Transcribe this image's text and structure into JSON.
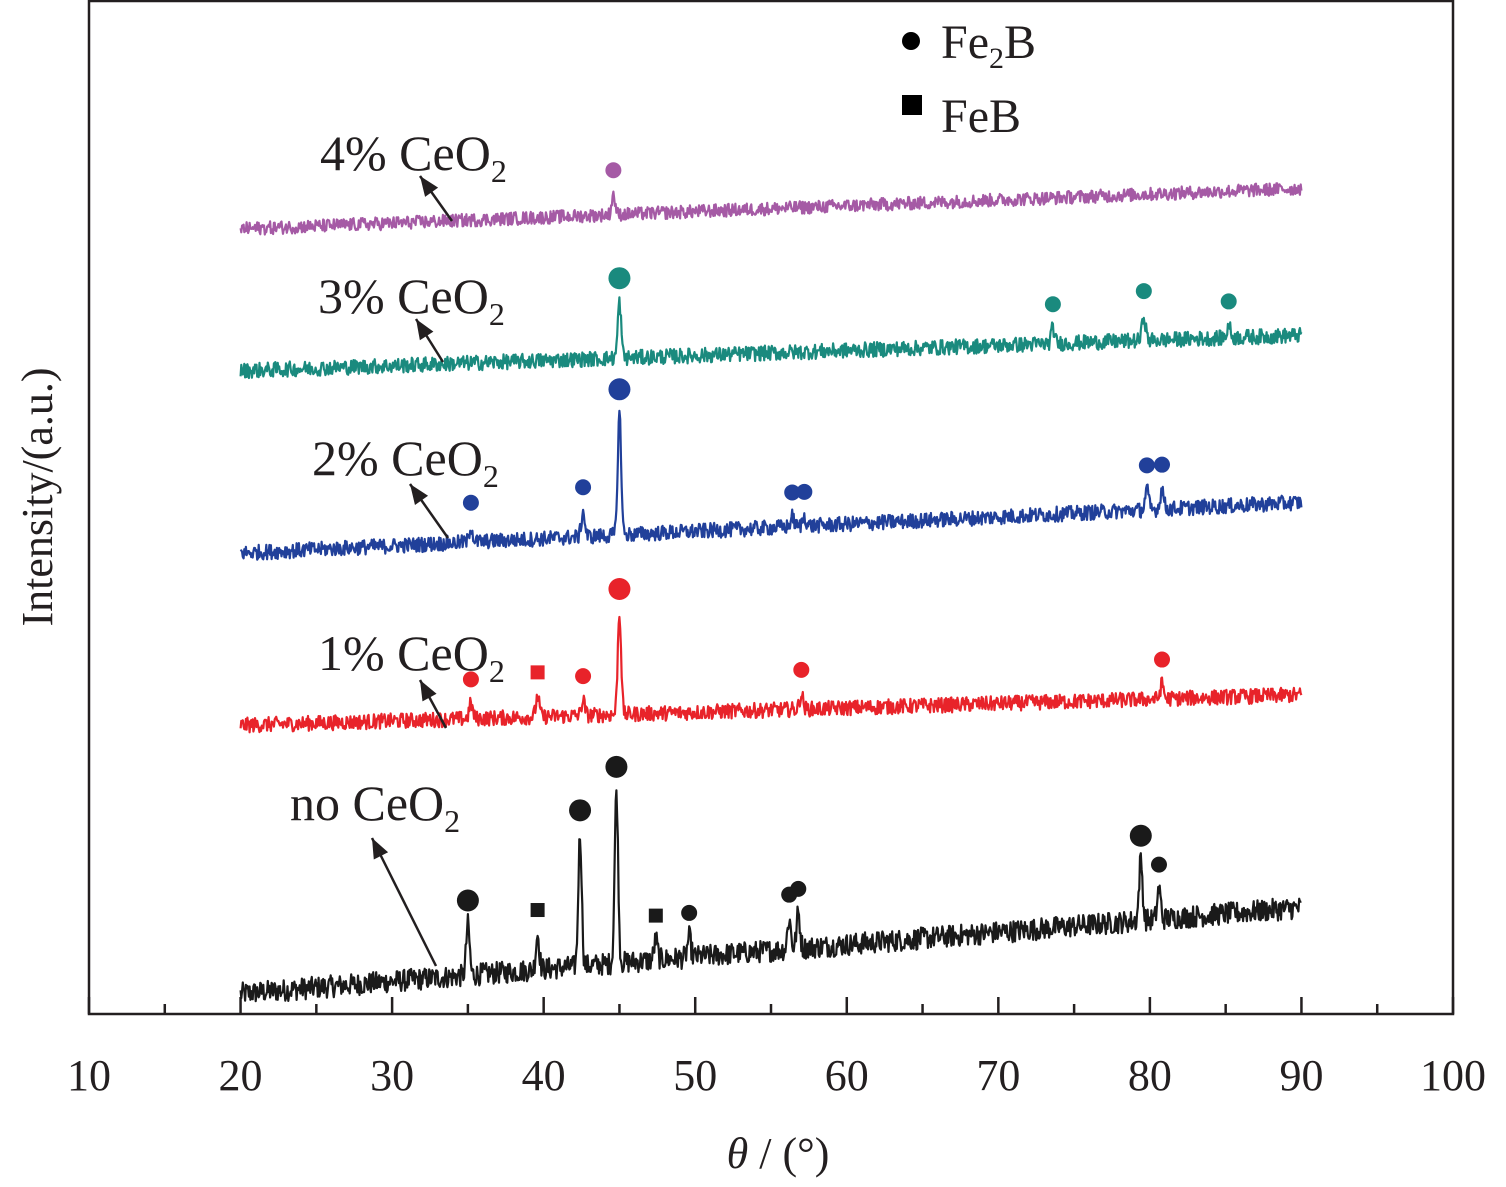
{
  "chart_data": {
    "type": "line",
    "title": "",
    "xlabel_symbol": "θ",
    "xlabel_unit": " / (°)",
    "ylabel": "Intensity/(a.u.)",
    "xlim": [
      10,
      100
    ],
    "xticks": [
      10,
      20,
      30,
      40,
      50,
      60,
      70,
      80,
      90,
      100
    ],
    "x_range": [
      20,
      90
    ],
    "legend_position": "top-center",
    "legend": [
      {
        "marker": "circle",
        "label_base": "Fe",
        "label_sub": "2",
        "label_tail": "B"
      },
      {
        "marker": "square",
        "label_base": "FeB",
        "label_sub": "",
        "label_tail": ""
      }
    ],
    "series": [
      {
        "name_base": "no CeO",
        "name_sub": "2",
        "color": "#1a1a1a",
        "baseline": [
          0.02,
          0.105
        ],
        "noise": 0.022,
        "peaks": [
          {
            "x": 35.0,
            "h": 0.05,
            "phase": "Fe2B"
          },
          {
            "x": 39.6,
            "h": 0.035,
            "phase": "FeB"
          },
          {
            "x": 42.4,
            "h": 0.13,
            "phase": "Fe2B"
          },
          {
            "x": 44.8,
            "h": 0.17,
            "phase": "Fe2B"
          },
          {
            "x": 47.4,
            "h": 0.02,
            "phase": "FeB"
          },
          {
            "x": 49.6,
            "h": 0.02,
            "phase": "Fe2B"
          },
          {
            "x": 56.2,
            "h": 0.03,
            "phase": "Fe2B"
          },
          {
            "x": 56.8,
            "h": 0.035,
            "phase": "Fe2B"
          },
          {
            "x": 79.4,
            "h": 0.06,
            "phase": "Fe2B"
          },
          {
            "x": 80.6,
            "h": 0.03,
            "phase": "Fe2B"
          }
        ]
      },
      {
        "name_base": "1% CeO",
        "name_sub": "2",
        "color": "#e8232a",
        "baseline": [
          0.285,
          0.315
        ],
        "noise": 0.015,
        "peaks": [
          {
            "x": 35.2,
            "h": 0.015,
            "phase": "Fe2B"
          },
          {
            "x": 39.6,
            "h": 0.02,
            "phase": "FeB"
          },
          {
            "x": 42.6,
            "h": 0.015,
            "phase": "Fe2B"
          },
          {
            "x": 45.0,
            "h": 0.1,
            "phase": "Fe2B"
          },
          {
            "x": 57.0,
            "h": 0.015,
            "phase": "Fe2B"
          },
          {
            "x": 80.8,
            "h": 0.015,
            "phase": "Fe2B"
          }
        ]
      },
      {
        "name_base": "2% CeO",
        "name_sub": "2",
        "color": "#21409a",
        "baseline": [
          0.455,
          0.505
        ],
        "noise": 0.015,
        "peaks": [
          {
            "x": 35.2,
            "h": 0.015,
            "phase": "Fe2B"
          },
          {
            "x": 42.6,
            "h": 0.025,
            "phase": "Fe2B"
          },
          {
            "x": 45.0,
            "h": 0.12,
            "phase": "Fe2B"
          },
          {
            "x": 56.4,
            "h": 0.01,
            "phase": "Fe2B"
          },
          {
            "x": 57.2,
            "h": 0.01,
            "phase": "Fe2B"
          },
          {
            "x": 79.8,
            "h": 0.02,
            "phase": "Fe2B"
          },
          {
            "x": 80.8,
            "h": 0.02,
            "phase": "Fe2B"
          }
        ]
      },
      {
        "name_base": "3% CeO",
        "name_sub": "2",
        "color": "#1a8a7e",
        "baseline": [
          0.635,
          0.67
        ],
        "noise": 0.015,
        "peaks": [
          {
            "x": 45.0,
            "h": 0.055,
            "phase": "Fe2B"
          },
          {
            "x": 73.6,
            "h": 0.015,
            "phase": "Fe2B"
          },
          {
            "x": 79.6,
            "h": 0.025,
            "phase": "Fe2B"
          },
          {
            "x": 85.2,
            "h": 0.012,
            "phase": "Fe2B"
          }
        ]
      },
      {
        "name_base": "4% CeO",
        "name_sub": "2",
        "color": "#a55aa5",
        "baseline": [
          0.775,
          0.815
        ],
        "noise": 0.013,
        "peaks": [
          {
            "x": 44.6,
            "h": 0.02,
            "phase": "Fe2B"
          }
        ]
      }
    ]
  }
}
